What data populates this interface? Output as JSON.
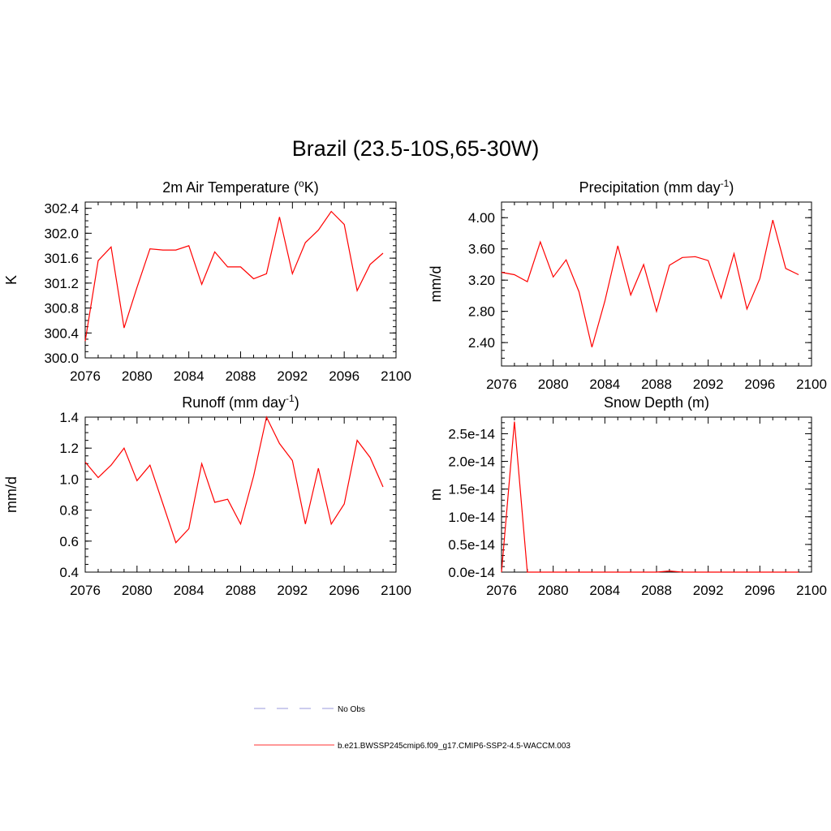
{
  "figure": {
    "title": "Brazil (23.5-10S,65-30W)"
  },
  "legend": {
    "entries": [
      {
        "label": "No Obs",
        "style": "dashed",
        "color": "#9999dd"
      },
      {
        "label": "b.e21.BWSSP245cmip6.f09_g17.CMIP6-SSP2-4.5-WACCM.003",
        "style": "solid",
        "color": "#ff3030"
      }
    ]
  },
  "chart_data": [
    {
      "type": "line",
      "title": "2m Air Temperature (",
      "title_sup": "o",
      "title_tail": "K)",
      "ylabel": "K",
      "xlim": [
        2076,
        2100
      ],
      "ylim": [
        300.0,
        302.5
      ],
      "xticks": [
        "2076",
        "2080",
        "2084",
        "2088",
        "2092",
        "2096",
        "2100"
      ],
      "yticks": [
        "300.0",
        "300.4",
        "300.8",
        "301.2",
        "301.6",
        "302.0",
        "302.4"
      ],
      "yminor_step": 0.1,
      "series": [
        {
          "color": "#ff0000",
          "x": [
            2076,
            2077,
            2078,
            2079,
            2080,
            2081,
            2082,
            2083,
            2084,
            2085,
            2086,
            2087,
            2088,
            2089,
            2090,
            2091,
            2092,
            2093,
            2094,
            2095,
            2096,
            2097,
            2098,
            2099
          ],
          "y": [
            300.27,
            301.56,
            301.78,
            300.48,
            301.13,
            301.75,
            301.73,
            301.73,
            301.8,
            301.18,
            301.7,
            301.46,
            301.46,
            301.27,
            301.35,
            302.26,
            301.35,
            301.85,
            302.05,
            302.35,
            302.14,
            301.08,
            301.5,
            301.68
          ]
        }
      ]
    },
    {
      "type": "line",
      "title": "Precipitation (mm day",
      "title_sup": "-1",
      "title_tail": ")",
      "ylabel": "mm/d",
      "xlim": [
        2076,
        2100
      ],
      "ylim": [
        2.1,
        4.2
      ],
      "xticks": [
        "2076",
        "2080",
        "2084",
        "2088",
        "2092",
        "2096",
        "2100"
      ],
      "yticks": [
        "2.40",
        "2.80",
        "3.20",
        "3.60",
        "4.00"
      ],
      "yminor_step": 0.1,
      "series": [
        {
          "color": "#ff0000",
          "x": [
            2076,
            2077,
            2078,
            2079,
            2080,
            2081,
            2082,
            2083,
            2084,
            2085,
            2086,
            2087,
            2088,
            2089,
            2090,
            2091,
            2092,
            2093,
            2094,
            2095,
            2096,
            2097,
            2098,
            2099
          ],
          "y": [
            3.3,
            3.27,
            3.18,
            3.69,
            3.24,
            3.46,
            3.05,
            2.34,
            2.93,
            3.64,
            3.01,
            3.4,
            2.8,
            3.39,
            3.49,
            3.5,
            3.45,
            2.97,
            3.54,
            2.83,
            3.22,
            3.97,
            3.35,
            3.27
          ]
        }
      ]
    },
    {
      "type": "line",
      "title": "Runoff (mm day",
      "title_sup": "-1",
      "title_tail": ")",
      "ylabel": "mm/d",
      "xlim": [
        2076,
        2100
      ],
      "ylim": [
        0.4,
        1.4
      ],
      "xticks": [
        "2076",
        "2080",
        "2084",
        "2088",
        "2092",
        "2096",
        "2100"
      ],
      "yticks": [
        "0.4",
        "0.6",
        "0.8",
        "1.0",
        "1.2",
        "1.4"
      ],
      "yminor_step": 0.05,
      "series": [
        {
          "color": "#ff0000",
          "x": [
            2076,
            2077,
            2078,
            2079,
            2080,
            2081,
            2082,
            2083,
            2084,
            2085,
            2086,
            2087,
            2088,
            2089,
            2090,
            2091,
            2092,
            2093,
            2094,
            2095,
            2096,
            2097,
            2098,
            2099
          ],
          "y": [
            1.11,
            1.01,
            1.09,
            1.2,
            0.99,
            1.09,
            0.84,
            0.59,
            0.68,
            1.1,
            0.85,
            0.87,
            0.71,
            1.02,
            1.4,
            1.23,
            1.12,
            0.71,
            1.07,
            0.71,
            0.84,
            1.25,
            1.14,
            0.95
          ]
        }
      ]
    },
    {
      "type": "line",
      "title": "Snow Depth (m)",
      "title_sup": "",
      "title_tail": "",
      "ylabel": "m",
      "xlim": [
        2076,
        2100
      ],
      "ylim": [
        0,
        2.8e-14
      ],
      "xticks": [
        "2076",
        "2080",
        "2084",
        "2088",
        "2092",
        "2096",
        "2100"
      ],
      "yticks": [
        "0.0e-14",
        "0.5e-14",
        "1.0e-14",
        "1.5e-14",
        "2.0e-14",
        "2.5e-14"
      ],
      "ytick_values": [
        0,
        5e-15,
        1e-14,
        1.5e-14,
        2e-14,
        2.5e-14
      ],
      "yminor_step": 1e-15,
      "series": [
        {
          "color": "#ff0000",
          "x": [
            2076,
            2077,
            2078,
            2079,
            2080,
            2081,
            2082,
            2083,
            2084,
            2085,
            2086,
            2087,
            2088,
            2089,
            2090,
            2091,
            2092,
            2093,
            2094,
            2095,
            2096,
            2097,
            2098,
            2099
          ],
          "y": [
            0,
            2.72e-14,
            0,
            0,
            0,
            0,
            0,
            0,
            0,
            0,
            0,
            0,
            0,
            2e-16,
            0,
            0,
            0,
            0,
            0,
            0,
            0,
            0,
            0,
            0
          ]
        }
      ]
    }
  ]
}
